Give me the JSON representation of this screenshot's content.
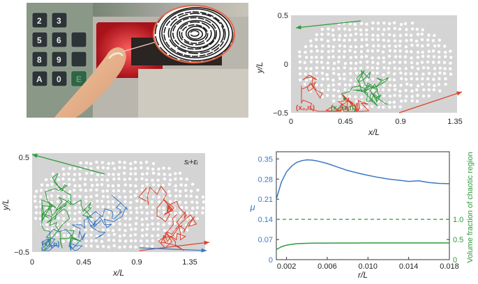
{
  "colors": {
    "red": "#e0402a",
    "green": "#2e9a3c",
    "blue": "#3a78c2",
    "gray_bg": "#d4d4d4",
    "photo_red": "#c4252a",
    "fingerprint_border": "#e46a4c"
  },
  "panel_a": {
    "description_icon": "fingerprint-icon"
  },
  "panel_b": {
    "xlabel": "x/L",
    "ylabel": "y/L",
    "xticks": [
      "0",
      "0.45",
      "0.9",
      "1.35"
    ],
    "yticks": [
      "0.5",
      "0",
      "−0.5"
    ],
    "legend_red": "(x₀,nᵢ)",
    "legend_green": "(x₀+ε,n)"
  },
  "panel_c": {
    "xlabel": "x/L",
    "ylabel": "y/L",
    "xticks": [
      "0",
      "0.45",
      "0.9",
      "1.35"
    ],
    "yticks": [
      "0.5",
      "−0.5"
    ],
    "corner_label": "sᵢ+εᵢ",
    "legend_blue": "(x₀,n)"
  },
  "chart_data": {
    "type": "line",
    "xlabel": "r/L",
    "ylabel_left": "μ",
    "ylabel_right": "Volume fraction of chaotic region",
    "xlim": [
      0.001,
      0.018
    ],
    "xticks": [
      "0.002",
      "0.006",
      "0.010",
      "0.014",
      "0.018"
    ],
    "ylim_left": [
      0,
      0.375
    ],
    "yticks_left": [
      "0.35",
      "0.28",
      "0.21",
      "0.14",
      "0.07",
      "0"
    ],
    "yticks_right": [
      "1.0",
      "0.5",
      "0"
    ],
    "series": [
      {
        "axis": "left",
        "x": [
          0.001,
          0.0015,
          0.002,
          0.0025,
          0.003,
          0.0035,
          0.004,
          0.0045,
          0.005,
          0.006,
          0.007,
          0.008,
          0.009,
          0.01,
          0.011,
          0.012,
          0.013,
          0.014,
          0.015,
          0.016,
          0.017,
          0.018
        ],
        "values": [
          0.21,
          0.27,
          0.305,
          0.325,
          0.338,
          0.344,
          0.347,
          0.346,
          0.343,
          0.334,
          0.322,
          0.31,
          0.301,
          0.293,
          0.286,
          0.28,
          0.276,
          0.272,
          0.274,
          0.268,
          0.265,
          0.264
        ]
      },
      {
        "axis": "right",
        "x": [
          0.001,
          0.0015,
          0.002,
          0.0025,
          0.003,
          0.0035,
          0.004,
          0.005,
          0.006,
          0.007,
          0.008,
          0.01,
          0.012,
          0.014,
          0.016,
          0.018
        ],
        "values": [
          0.25,
          0.32,
          0.36,
          0.38,
          0.395,
          0.402,
          0.406,
          0.41,
          0.412,
          0.413,
          0.413,
          0.414,
          0.414,
          0.414,
          0.414,
          0.414
        ]
      }
    ],
    "reference_line": {
      "style": "dashed",
      "value": 0.14
    }
  }
}
